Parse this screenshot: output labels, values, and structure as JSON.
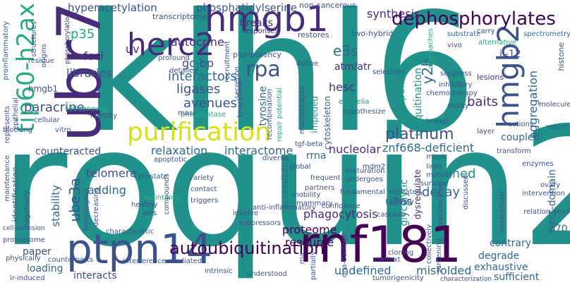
{
  "palette": {
    "dark_purple": "#440154",
    "indigo": "#472c7a",
    "blue": "#3b528b",
    "steel": "#31688e",
    "teal": "#21918c",
    "sea": "#25ab82",
    "green": "#5ec962",
    "lime": "#addc30",
    "yellow": "#d5e21a"
  },
  "words": [
    {
      "text": "klhl6"
    },
    {
      "text": "roquin2"
    },
    {
      "text": "ubr7"
    },
    {
      "text": "hmgb1"
    },
    {
      "text": "tip60-h2ax"
    },
    {
      "text": "herc2"
    },
    {
      "text": "hmgb2"
    },
    {
      "text": "purification"
    },
    {
      "text": "ptpn14"
    },
    {
      "text": "rnf181"
    },
    {
      "text": "autoubiquitination"
    },
    {
      "text": "dephosphorylates"
    },
    {
      "text": "hyperacetylation"
    },
    {
      "text": "phosphatidylserine"
    },
    {
      "text": "synthesis"
    },
    {
      "text": "rpa"
    },
    {
      "text": "e3s"
    },
    {
      "text": "y2h"
    },
    {
      "text": "p35"
    },
    {
      "text": "foci"
    },
    {
      "text": "autocrine"
    },
    {
      "text": "uv"
    },
    {
      "text": "gc-bp"
    },
    {
      "text": "libraries"
    },
    {
      "text": "interactors"
    },
    {
      "text": "ligases"
    },
    {
      "text": "avenues"
    },
    {
      "text": "paracrine"
    },
    {
      "text": "platinum"
    },
    {
      "text": "counteracted"
    },
    {
      "text": "relaxation"
    },
    {
      "text": "interactome"
    },
    {
      "text": "nucleolar"
    },
    {
      "text": "znf668-deficient"
    },
    {
      "text": "ube3a"
    },
    {
      "text": "telomere"
    },
    {
      "text": "adding"
    },
    {
      "text": "named"
    },
    {
      "text": "decay"
    },
    {
      "text": "stability"
    },
    {
      "text": "accessibility"
    },
    {
      "text": "u2os"
    },
    {
      "text": "phagocytosis"
    },
    {
      "text": "proteome"
    },
    {
      "text": "resource"
    },
    {
      "text": "paper"
    },
    {
      "text": "loading"
    },
    {
      "text": "interacts"
    },
    {
      "text": "undefined"
    },
    {
      "text": "misfolded"
    },
    {
      "text": "degrade"
    },
    {
      "text": "exhaustive"
    },
    {
      "text": "sufficient"
    },
    {
      "text": "contrary"
    },
    {
      "text": "hesc"
    },
    {
      "text": "baits"
    },
    {
      "text": "coupled"
    },
    {
      "text": "aggregation"
    },
    {
      "text": "hect-domain"
    },
    {
      "text": "il-12"
    },
    {
      "text": "atm/atr"
    },
    {
      "text": "cytoskeleton"
    },
    {
      "text": "tyrosine"
    },
    {
      "text": "impairs"
    },
    {
      "text": "ubiquitination"
    },
    {
      "text": "rrna"
    },
    {
      "text": "glycolytic"
    },
    {
      "text": "dysregulate"
    },
    {
      "text": "impeded"
    },
    {
      "text": "identification"
    },
    {
      "text": "breaks"
    },
    {
      "text": "p70"
    },
    {
      "text": "hmgb1"
    },
    {
      "text": "non-cancerous"
    },
    {
      "text": "transcriptome"
    },
    {
      "text": "restores"
    },
    {
      "text": "two-hybrid"
    },
    {
      "text": "substrate"
    },
    {
      "text": "spectrometry"
    },
    {
      "text": "carry"
    },
    {
      "text": "alternative"
    },
    {
      "text": "histone"
    },
    {
      "text": "vivo"
    },
    {
      "text": "approaches"
    },
    {
      "text": "proinflammatory"
    },
    {
      "text": "structures"
    },
    {
      "text": "origins"
    },
    {
      "text": "phosphorylation"
    },
    {
      "text": "residue"
    },
    {
      "text": "profound"
    },
    {
      "text": "recruitment"
    },
    {
      "text": "detailed"
    },
    {
      "text": "pluripotency"
    },
    {
      "text": "secretion"
    },
    {
      "text": "responses"
    },
    {
      "text": "selection"
    },
    {
      "text": "define"
    },
    {
      "text": "inhibitory"
    },
    {
      "text": "suppress"
    },
    {
      "text": "lesions"
    },
    {
      "text": "molecule"
    },
    {
      "text": "phosphatase"
    },
    {
      "text": "mass"
    },
    {
      "text": "knockdown"
    },
    {
      "text": "recombination"
    },
    {
      "text": "repair potential"
    },
    {
      "text": "macrophages"
    },
    {
      "text": "epithelia"
    },
    {
      "text": "hypothesize"
    },
    {
      "text": "chemotherapy"
    },
    {
      "text": "breast"
    },
    {
      "text": "layer"
    },
    {
      "text": "actions"
    },
    {
      "text": "report"
    },
    {
      "text": "enzymes"
    },
    {
      "text": "transform"
    },
    {
      "text": "ovary"
    },
    {
      "text": "intervention"
    },
    {
      "text": "relation"
    },
    {
      "text": "yeast"
    },
    {
      "text": "mimic"
    },
    {
      "text": "links"
    },
    {
      "text": "motility"
    },
    {
      "text": "survival"
    },
    {
      "text": "intracellular"
    },
    {
      "text": "discussed"
    },
    {
      "text": "translocation"
    },
    {
      "text": "affinity"
    },
    {
      "text": "repeated"
    },
    {
      "text": "confidence"
    },
    {
      "text": "fundamental"
    },
    {
      "text": "undergoes"
    },
    {
      "text": "maturation"
    },
    {
      "text": "partners"
    },
    {
      "text": "mobility"
    },
    {
      "text": "frequent"
    },
    {
      "text": "global"
    },
    {
      "text": "mammary"
    },
    {
      "text": "anti-inflammatory"
    },
    {
      "text": "diverse"
    },
    {
      "text": "apoptotic"
    },
    {
      "text": "tgf-beta"
    },
    {
      "text": "cascade"
    },
    {
      "text": "cellular"
    },
    {
      "text": "blocking"
    },
    {
      "text": "self-renewal"
    },
    {
      "text": "vitro"
    },
    {
      "text": "identity"
    },
    {
      "text": "prostate"
    },
    {
      "text": "variety"
    },
    {
      "text": "contact"
    },
    {
      "text": "maintains"
    },
    {
      "text": "triggers"
    },
    {
      "text": "healthy"
    },
    {
      "text": "compounds"
    },
    {
      "text": "axis"
    },
    {
      "text": "homologous"
    },
    {
      "text": "decreasing"
    },
    {
      "text": "represents"
    },
    {
      "text": "epithelial"
    },
    {
      "text": "maintenance"
    },
    {
      "text": "negatively"
    },
    {
      "text": "proteasome"
    },
    {
      "text": "physically"
    },
    {
      "text": "counterparts"
    },
    {
      "text": "ir-induced"
    },
    {
      "text": "interference-mediated"
    },
    {
      "text": "intrinsic"
    },
    {
      "text": "understood"
    },
    {
      "text": "involve"
    },
    {
      "text": "suppressors"
    },
    {
      "text": "characteristic"
    },
    {
      "text": "rna"
    },
    {
      "text": "partially"
    },
    {
      "text": "dna-damage"
    },
    {
      "text": "context"
    },
    {
      "text": "tumorigenicity"
    },
    {
      "text": "cloning"
    },
    {
      "text": "screening"
    },
    {
      "text": "collectively"
    },
    {
      "text": "ability"
    },
    {
      "text": "characterization"
    },
    {
      "text": "mdm2"
    },
    {
      "text": "cell-adhesion"
    }
  ]
}
